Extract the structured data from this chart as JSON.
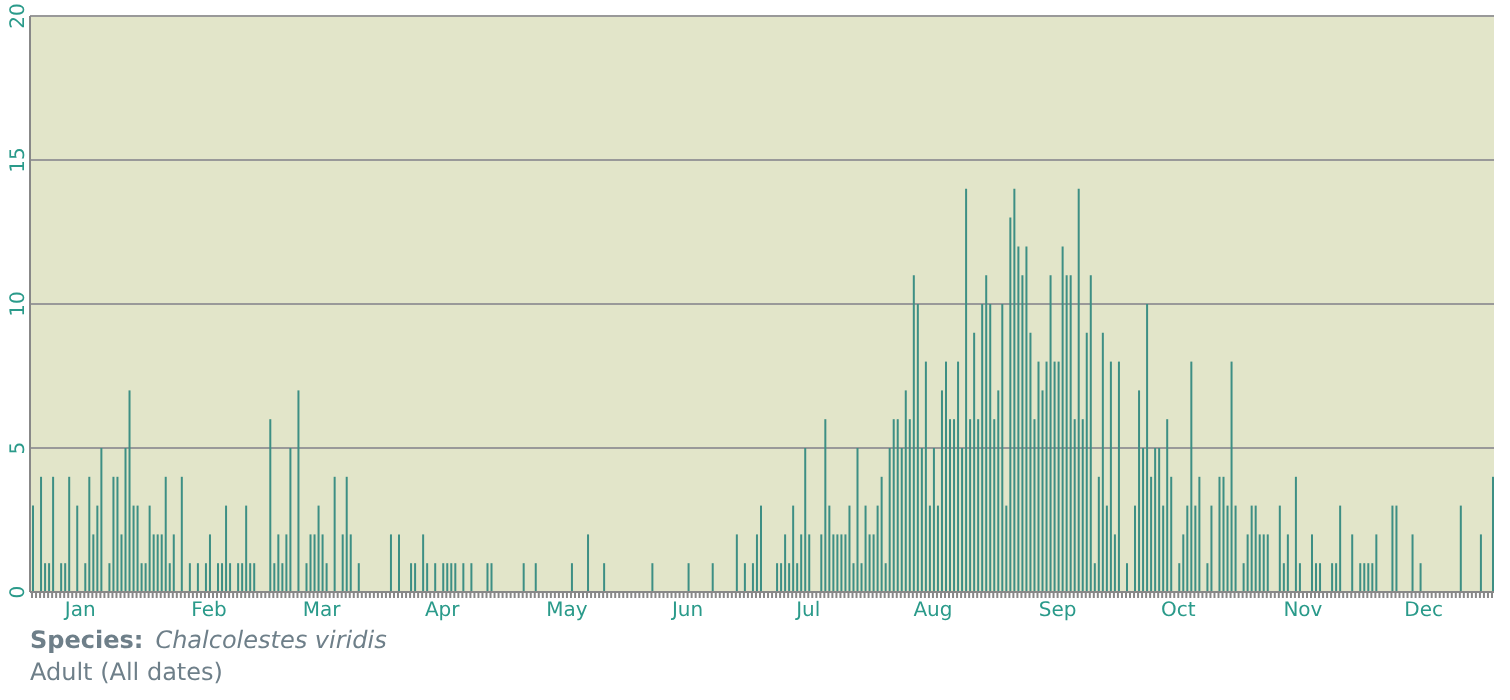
{
  "chart_data": {
    "type": "bar",
    "categories": [
      null,
      null,
      null,
      null,
      null,
      null,
      null,
      null,
      null,
      null,
      null,
      null,
      "Jan",
      null,
      null,
      null,
      null,
      null,
      null,
      null,
      null,
      null,
      null,
      null,
      null,
      null,
      null,
      null,
      null,
      null,
      null,
      null,
      null,
      null,
      null,
      null,
      null,
      null,
      null,
      null,
      null,
      null,
      null,
      null,
      "Feb",
      null,
      null,
      null,
      null,
      null,
      null,
      null,
      null,
      null,
      null,
      null,
      null,
      null,
      null,
      null,
      null,
      null,
      null,
      null,
      null,
      null,
      null,
      null,
      null,
      null,
      null,
      null,
      "Mar",
      null,
      null,
      null,
      null,
      null,
      null,
      null,
      null,
      null,
      null,
      null,
      null,
      null,
      null,
      null,
      null,
      null,
      null,
      null,
      null,
      null,
      null,
      null,
      null,
      null,
      null,
      null,
      null,
      null,
      "Apr",
      null,
      null,
      null,
      null,
      null,
      null,
      null,
      null,
      null,
      null,
      null,
      null,
      null,
      null,
      null,
      null,
      null,
      null,
      null,
      null,
      null,
      null,
      null,
      null,
      null,
      null,
      null,
      null,
      null,
      null,
      "May",
      null,
      null,
      null,
      null,
      null,
      null,
      null,
      null,
      null,
      null,
      null,
      null,
      null,
      null,
      null,
      null,
      null,
      null,
      null,
      null,
      null,
      null,
      null,
      null,
      null,
      null,
      null,
      null,
      null,
      "Jun",
      null,
      null,
      null,
      null,
      null,
      null,
      null,
      null,
      null,
      null,
      null,
      null,
      null,
      null,
      null,
      null,
      null,
      null,
      null,
      null,
      null,
      null,
      null,
      null,
      null,
      null,
      null,
      null,
      null,
      "Jul",
      null,
      null,
      null,
      null,
      null,
      null,
      null,
      null,
      null,
      null,
      null,
      null,
      null,
      null,
      null,
      null,
      null,
      null,
      null,
      null,
      null,
      null,
      null,
      null,
      null,
      null,
      null,
      null,
      null,
      null,
      "Aug",
      null,
      null,
      null,
      null,
      null,
      null,
      null,
      null,
      null,
      null,
      null,
      null,
      null,
      null,
      null,
      null,
      null,
      null,
      null,
      null,
      null,
      null,
      null,
      null,
      null,
      null,
      null,
      null,
      null,
      null,
      "Sep",
      null,
      null,
      null,
      null,
      null,
      null,
      null,
      null,
      null,
      null,
      null,
      null,
      null,
      null,
      null,
      null,
      null,
      null,
      null,
      null,
      null,
      null,
      null,
      null,
      null,
      null,
      null,
      null,
      null,
      "Oct",
      null,
      null,
      null,
      null,
      null,
      null,
      null,
      null,
      null,
      null,
      null,
      null,
      null,
      null,
      null,
      null,
      null,
      null,
      null,
      null,
      null,
      null,
      null,
      null,
      null,
      null,
      null,
      null,
      null,
      null,
      "Nov",
      null,
      null,
      null,
      null,
      null,
      null,
      null,
      null,
      null,
      null,
      null,
      null,
      null,
      null,
      null,
      null,
      null,
      null,
      null,
      null,
      null,
      null,
      null,
      null,
      null,
      null,
      null,
      null,
      null,
      "Dec",
      null,
      null,
      null,
      null,
      null,
      null,
      null,
      null,
      null,
      null,
      null,
      null,
      null,
      null,
      null,
      null,
      null
    ],
    "values": [
      3,
      0,
      4,
      1,
      1,
      4,
      0,
      1,
      1,
      4,
      0,
      3,
      0,
      1,
      4,
      2,
      3,
      5,
      0,
      1,
      4,
      4,
      2,
      5,
      7,
      3,
      3,
      1,
      1,
      3,
      2,
      2,
      2,
      4,
      1,
      2,
      0,
      4,
      0,
      1,
      0,
      1,
      0,
      1,
      2,
      0,
      1,
      1,
      3,
      1,
      0,
      1,
      1,
      3,
      1,
      1,
      0,
      0,
      0,
      6,
      1,
      2,
      1,
      2,
      5,
      0,
      7,
      0,
      1,
      2,
      2,
      3,
      2,
      1,
      0,
      4,
      0,
      2,
      4,
      2,
      0,
      1,
      0,
      0,
      0,
      0,
      0,
      0,
      0,
      2,
      0,
      2,
      0,
      0,
      1,
      1,
      0,
      2,
      1,
      0,
      1,
      0,
      1,
      1,
      1,
      1,
      0,
      1,
      0,
      1,
      0,
      0,
      0,
      1,
      1,
      0,
      0,
      0,
      0,
      0,
      0,
      0,
      1,
      0,
      0,
      1,
      0,
      0,
      0,
      0,
      0,
      0,
      0,
      0,
      1,
      0,
      0,
      0,
      2,
      0,
      0,
      0,
      1,
      0,
      0,
      0,
      0,
      0,
      0,
      0,
      0,
      0,
      0,
      0,
      1,
      0,
      0,
      0,
      0,
      0,
      0,
      0,
      0,
      1,
      0,
      0,
      0,
      0,
      0,
      1,
      0,
      0,
      0,
      0,
      0,
      2,
      0,
      1,
      0,
      1,
      2,
      3,
      0,
      0,
      0,
      1,
      1,
      2,
      1,
      3,
      1,
      2,
      5,
      2,
      0,
      0,
      2,
      6,
      3,
      2,
      2,
      2,
      2,
      3,
      1,
      5,
      1,
      3,
      2,
      2,
      3,
      4,
      1,
      5,
      6,
      6,
      5,
      7,
      6,
      11,
      10,
      5,
      8,
      3,
      5,
      3,
      7,
      8,
      6,
      6,
      8,
      5,
      14,
      6,
      9,
      6,
      10,
      11,
      10,
      6,
      7,
      10,
      3,
      13,
      14,
      12,
      11,
      12,
      9,
      6,
      8,
      7,
      8,
      11,
      8,
      8,
      12,
      11,
      11,
      6,
      14,
      6,
      9,
      11,
      1,
      4,
      9,
      3,
      8,
      2,
      8,
      0,
      1,
      0,
      3,
      7,
      5,
      10,
      4,
      5,
      5,
      3,
      6,
      4,
      0,
      1,
      2,
      3,
      8,
      3,
      4,
      0,
      1,
      3,
      0,
      4,
      4,
      3,
      8,
      3,
      0,
      1,
      2,
      3,
      3,
      2,
      2,
      2,
      0,
      0,
      3,
      1,
      2,
      0,
      4,
      1,
      0,
      0,
      2,
      1,
      1,
      0,
      0,
      1,
      1,
      3,
      0,
      0,
      2,
      0,
      1,
      1,
      1,
      1,
      2,
      0,
      0,
      0,
      3,
      3,
      0,
      0,
      0,
      2,
      0,
      1,
      0,
      0,
      0,
      0,
      0,
      0,
      0,
      0,
      0,
      3,
      0,
      0,
      0,
      0,
      2,
      0,
      0,
      4
    ],
    "color": "#3d8f84",
    "ylim": [
      0,
      20
    ],
    "yticks": [
      0,
      5,
      10,
      15,
      20
    ],
    "grid": "y",
    "annotations": [
      "Species:",
      "Chalcolestes viridis",
      "Adult (All dates)"
    ]
  }
}
